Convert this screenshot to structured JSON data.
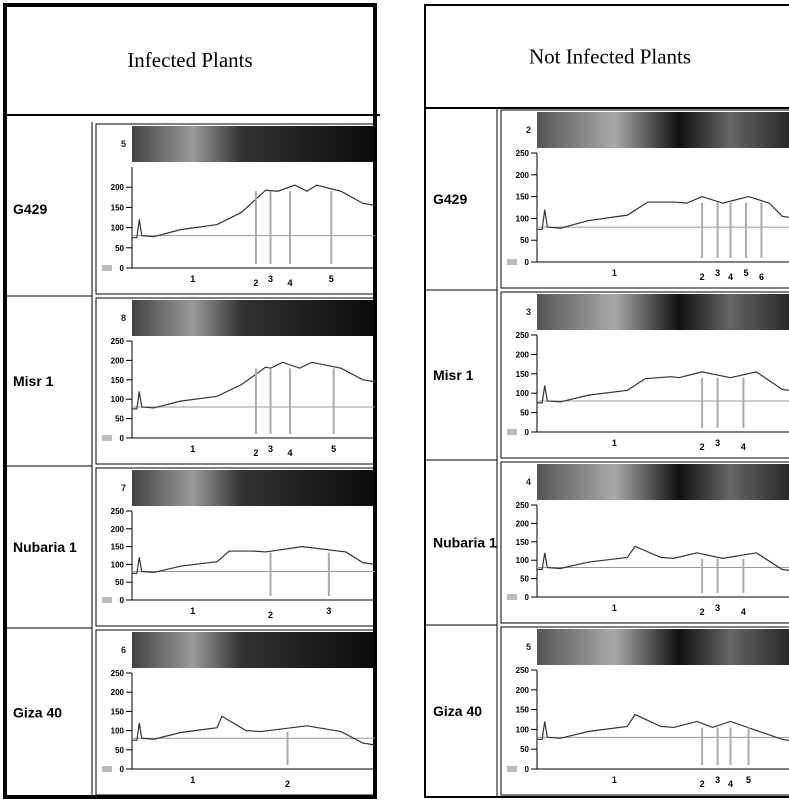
{
  "panels": [
    {
      "title": "Infected Plants",
      "rows": [
        {
          "label": "G429",
          "lane": "5",
          "yticks": [
            "200",
            "150",
            "100",
            "50",
            "0"
          ],
          "bands": [
            "1",
            "2",
            "3",
            "4",
            "5"
          ]
        },
        {
          "label": "Misr 1",
          "lane": "8",
          "yticks": [
            "250",
            "200",
            "150",
            "100",
            "50",
            "0"
          ],
          "bands": [
            "1",
            "2",
            "3",
            "4",
            "5"
          ]
        },
        {
          "label": "Nubaria 1",
          "lane": "7",
          "yticks": [
            "250",
            "200",
            "150",
            "100",
            "50",
            "0"
          ],
          "bands": [
            "1",
            "2",
            "3"
          ]
        },
        {
          "label": "Giza 40",
          "lane": "6",
          "yticks": [
            "250",
            "200",
            "150",
            "100",
            "50",
            "0"
          ],
          "bands": [
            "1",
            "2"
          ]
        }
      ]
    },
    {
      "title": "Not Infected Plants",
      "rows": [
        {
          "label": "G429",
          "lane": "2",
          "yticks": [
            "250",
            "200",
            "150",
            "100",
            "50",
            "0"
          ],
          "bands": [
            "1",
            "2",
            "3",
            "4",
            "5",
            "6"
          ]
        },
        {
          "label": "Misr 1",
          "lane": "3",
          "yticks": [
            "250",
            "200",
            "150",
            "100",
            "50",
            "0"
          ],
          "bands": [
            "1",
            "2",
            "3",
            "4"
          ]
        },
        {
          "label": "Nubaria 1",
          "lane": "4",
          "yticks": [
            "250",
            "200",
            "150",
            "100",
            "50",
            "0"
          ],
          "bands": [
            "1",
            "2",
            "3",
            "4"
          ]
        },
        {
          "label": "Giza 40",
          "lane": "5",
          "yticks": [
            "250",
            "200",
            "150",
            "100",
            "50",
            "0"
          ],
          "bands": [
            "1",
            "2",
            "3",
            "4",
            "5"
          ]
        }
      ]
    }
  ]
}
